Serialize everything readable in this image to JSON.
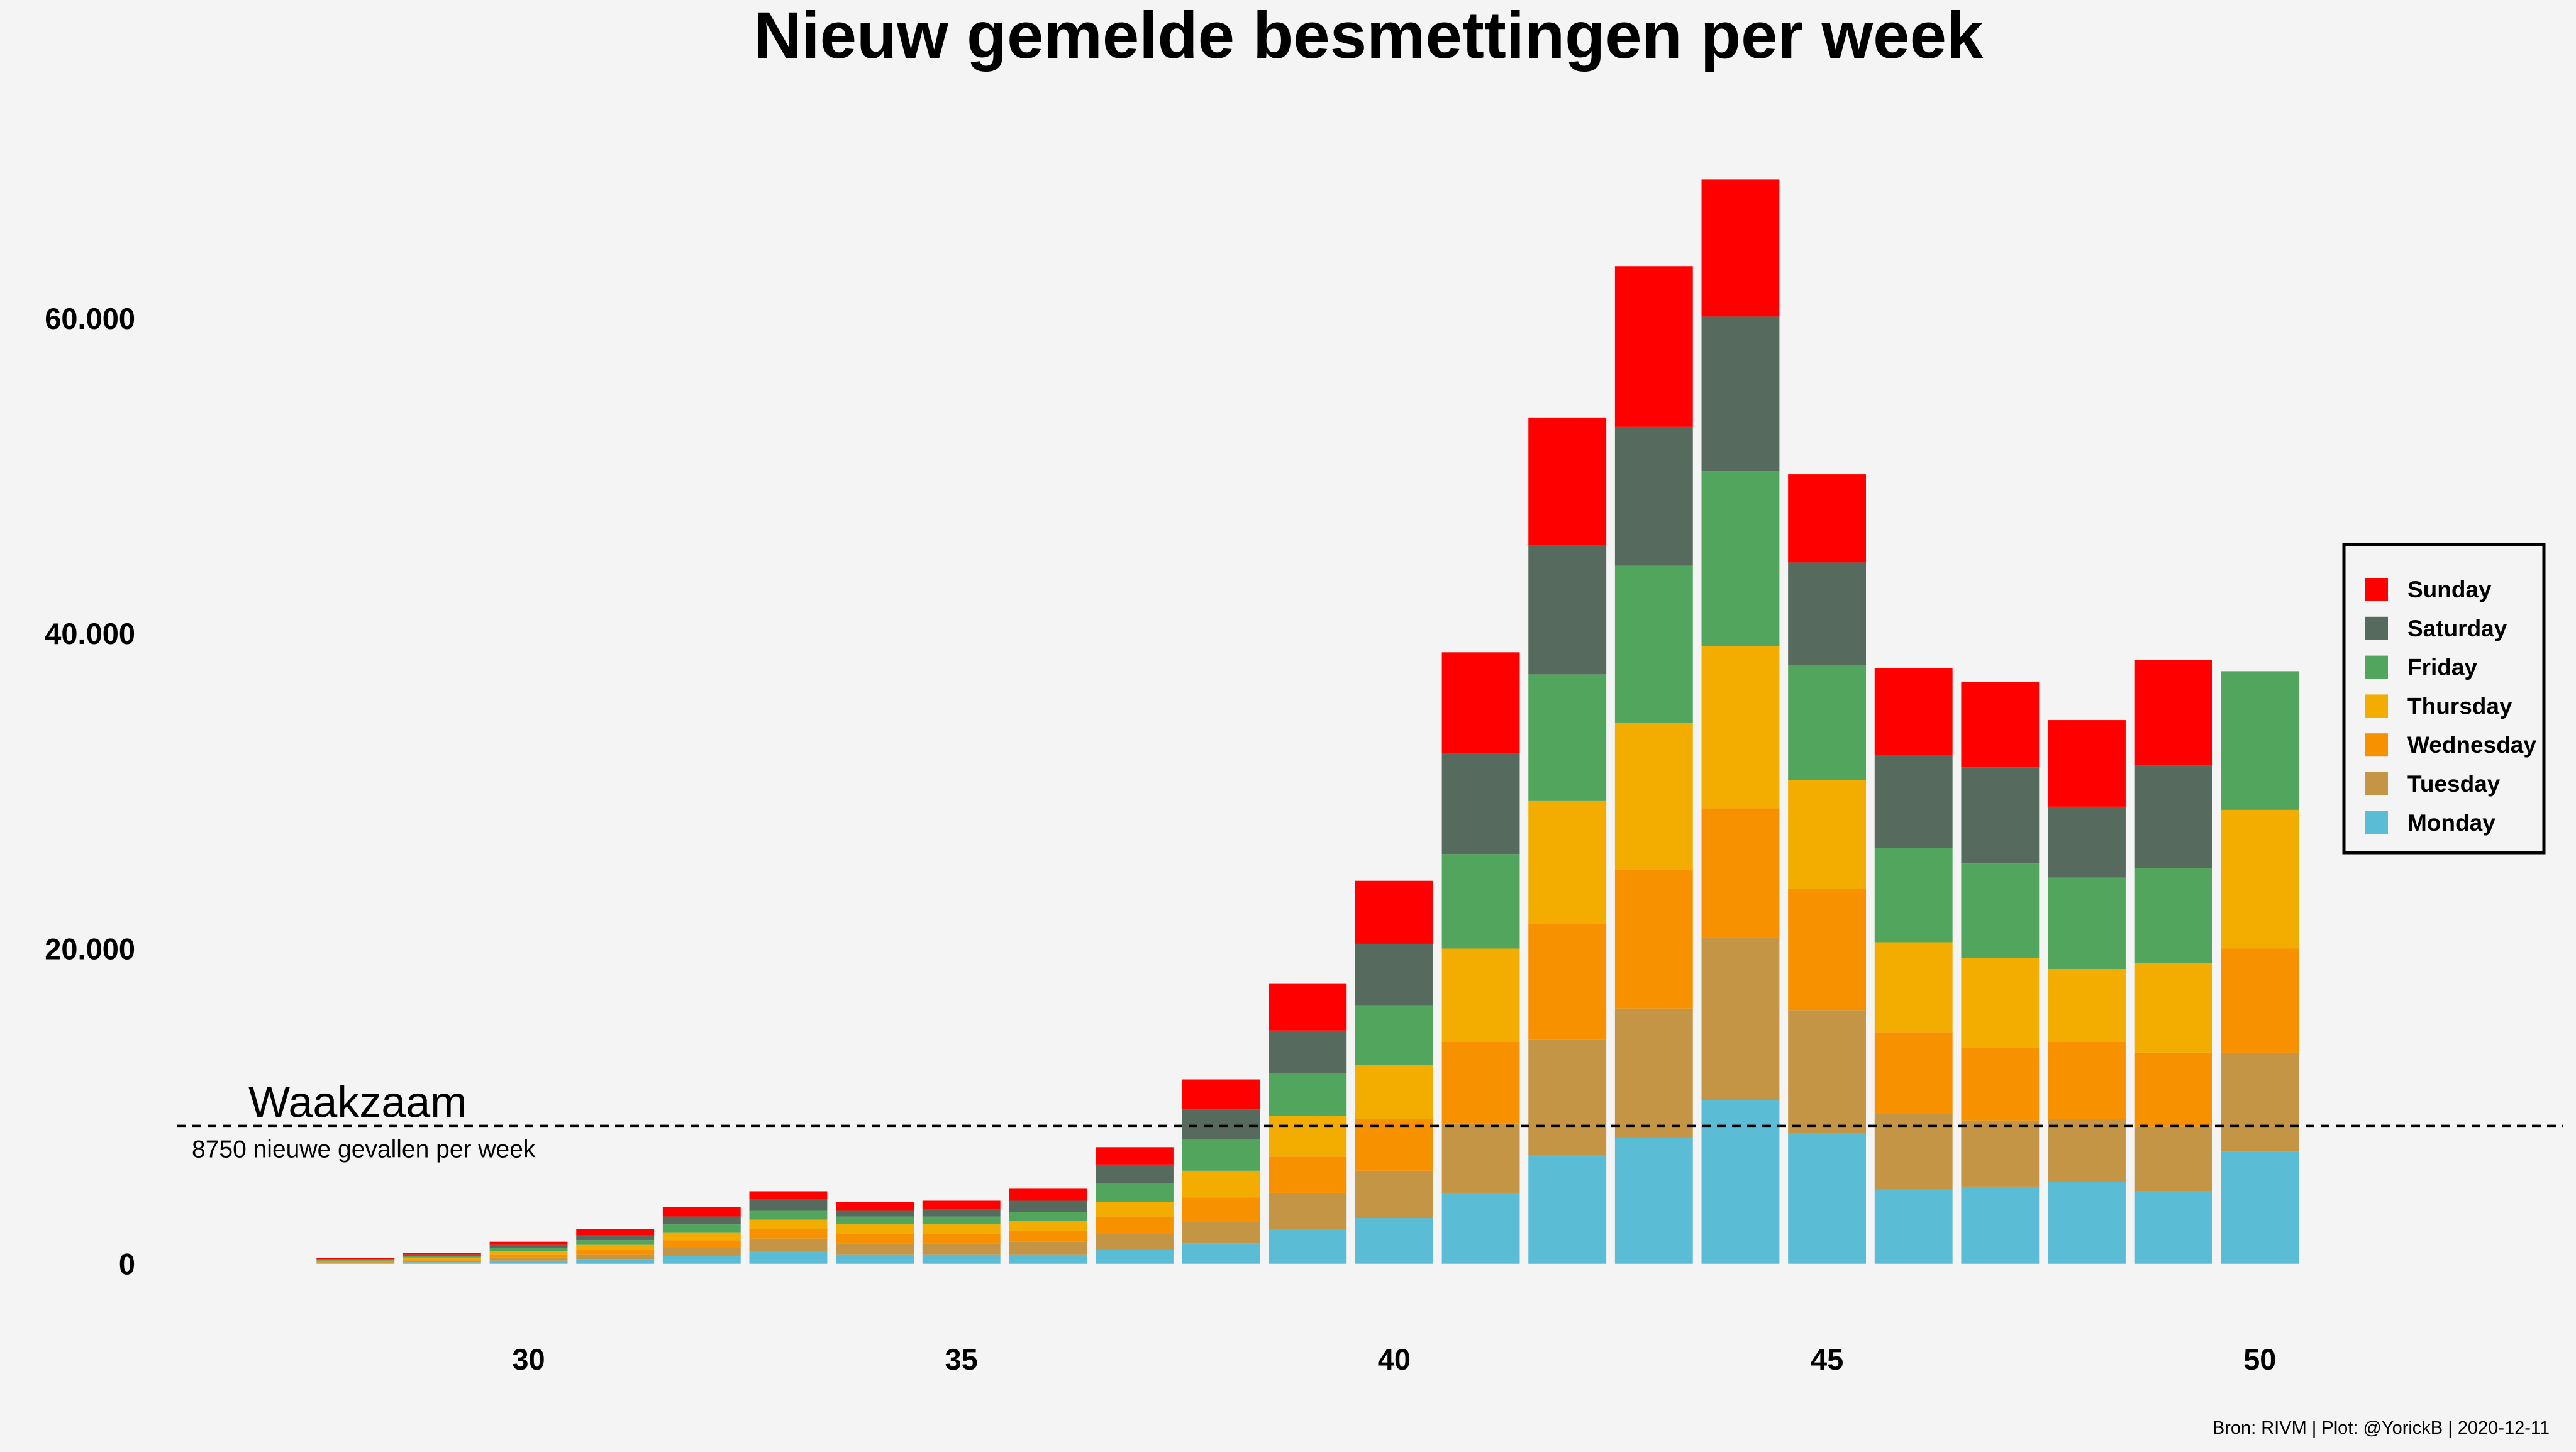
{
  "chart_data": {
    "type": "bar",
    "stacked": true,
    "title": "Nieuw gemelde besmettingen per week",
    "xlabel": "",
    "ylabel": "",
    "x_ticks": [
      30,
      35,
      40,
      45,
      50
    ],
    "xlim": [
      26,
      53.5
    ],
    "y_ticks": [
      0,
      20000,
      40000,
      60000
    ],
    "y_tick_labels": [
      "0",
      "20.000",
      "40.000",
      "60.000"
    ],
    "ylim": [
      -4000,
      75000
    ],
    "grid": false,
    "legend_position": "right",
    "colors": {
      "Monday": "#5bbcd6",
      "Tuesday": "#c59546",
      "Wednesday": "#f79100",
      "Thursday": "#f2ad00",
      "Friday": "#52a55c",
      "Saturday": "#566b5d",
      "Sunday": "#ff0000"
    },
    "legend_order": [
      "Sunday",
      "Saturday",
      "Friday",
      "Thursday",
      "Wednesday",
      "Tuesday",
      "Monday"
    ],
    "weeks": [
      28,
      29,
      30,
      31,
      32,
      33,
      34,
      35,
      36,
      37,
      38,
      39,
      40,
      41,
      42,
      43,
      44,
      45,
      46,
      47,
      48,
      49,
      50
    ],
    "series": [
      {
        "name": "Monday",
        "values": [
          50,
          100,
          200,
          300,
          500,
          800,
          600,
          600,
          600,
          900,
          1300,
          2200,
          2900,
          4500,
          6900,
          8000,
          10400,
          8300,
          4700,
          4900,
          5200,
          4600,
          7100
        ]
      },
      {
        "name": "Tuesday",
        "values": [
          50,
          100,
          200,
          300,
          500,
          800,
          700,
          700,
          800,
          1000,
          1400,
          2300,
          3000,
          4400,
          7300,
          8200,
          10300,
          7800,
          4800,
          4200,
          4000,
          4100,
          6300
        ]
      },
      {
        "name": "Wednesday",
        "values": [
          50,
          100,
          200,
          300,
          500,
          600,
          600,
          600,
          700,
          1100,
          1500,
          2300,
          3300,
          5200,
          7400,
          8800,
          8200,
          7700,
          5200,
          4600,
          4900,
          4700,
          6600
        ]
      },
      {
        "name": "Thursday",
        "values": [
          50,
          100,
          200,
          300,
          500,
          600,
          600,
          600,
          600,
          900,
          1700,
          2600,
          3400,
          5900,
          7800,
          9300,
          10300,
          6900,
          5700,
          5700,
          4600,
          5700,
          8800
        ]
      },
      {
        "name": "Friday",
        "values": [
          50,
          100,
          200,
          300,
          500,
          600,
          500,
          500,
          600,
          1200,
          2000,
          2700,
          3800,
          6000,
          8000,
          10000,
          11100,
          7300,
          6000,
          6000,
          5800,
          6000,
          8800
        ]
      },
      {
        "name": "Saturday",
        "values": [
          50,
          100,
          200,
          300,
          500,
          700,
          400,
          500,
          700,
          1200,
          1900,
          2700,
          3900,
          6400,
          8200,
          8800,
          9800,
          6500,
          5900,
          6100,
          4500,
          6500,
          null
        ]
      },
      {
        "name": "Sunday",
        "values": [
          50,
          100,
          200,
          400,
          600,
          500,
          500,
          500,
          800,
          1100,
          1900,
          3000,
          4000,
          6400,
          8100,
          10200,
          8700,
          5600,
          5500,
          5400,
          5500,
          6700,
          null
        ]
      }
    ],
    "threshold": {
      "value": 8750,
      "label": "Waakzaam",
      "sublabel": "8750 nieuwe gevallen per week"
    },
    "caption": "Bron: RIVM | Plot: @YorickB |  2020-12-11"
  }
}
